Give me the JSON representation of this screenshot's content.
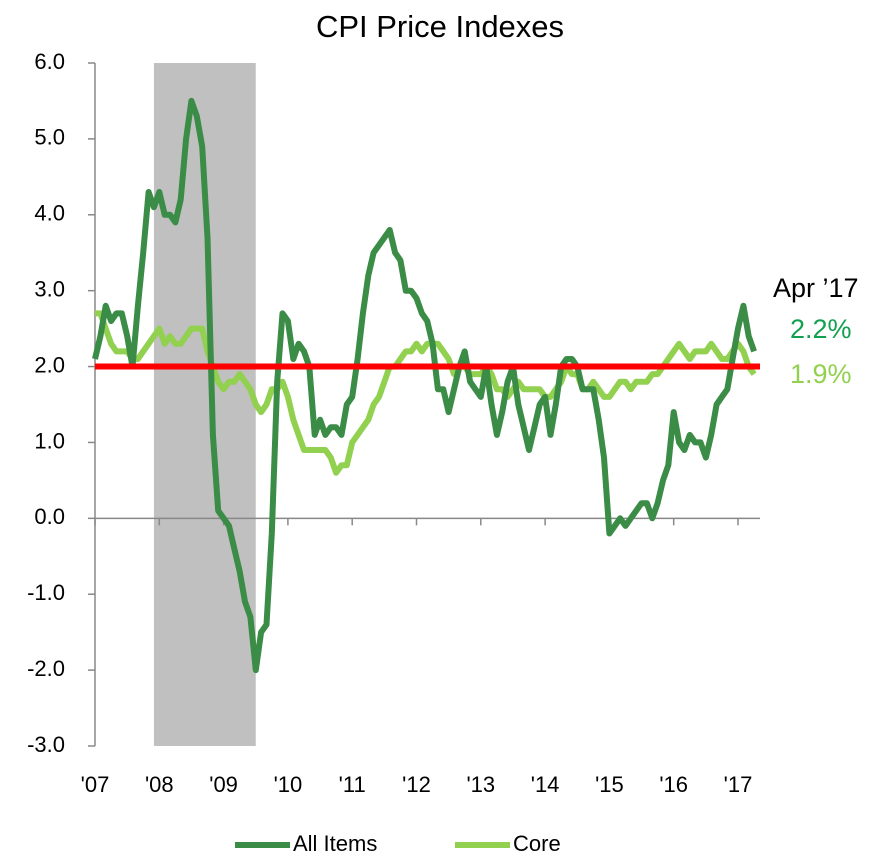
{
  "chart_data": {
    "type": "line",
    "title": "CPI Price Indexes",
    "categories": [
      "'07",
      null,
      null,
      null,
      null,
      null,
      null,
      null,
      null,
      null,
      null,
      null,
      "'08",
      null,
      null,
      null,
      null,
      null,
      null,
      null,
      null,
      null,
      null,
      null,
      "'09",
      null,
      null,
      null,
      null,
      null,
      null,
      null,
      null,
      null,
      null,
      null,
      "'10",
      null,
      null,
      null,
      null,
      null,
      null,
      null,
      null,
      null,
      null,
      null,
      "'11",
      null,
      null,
      null,
      null,
      null,
      null,
      null,
      null,
      null,
      null,
      null,
      "'12",
      null,
      null,
      null,
      null,
      null,
      null,
      null,
      null,
      null,
      null,
      null,
      "'13",
      null,
      null,
      null,
      null,
      null,
      null,
      null,
      null,
      null,
      null,
      null,
      "'14",
      null,
      null,
      null,
      null,
      null,
      null,
      null,
      null,
      null,
      null,
      null,
      "'15",
      null,
      null,
      null,
      null,
      null,
      null,
      null,
      null,
      null,
      null,
      null,
      "'16",
      null,
      null,
      null,
      null,
      null,
      null,
      null,
      null,
      null,
      null,
      null,
      "'17",
      null,
      null,
      null
    ],
    "series": [
      {
        "name": "All Items",
        "color": "#3a8c46",
        "values": [
          2.1,
          2.4,
          2.8,
          2.6,
          2.7,
          2.7,
          2.4,
          2.0,
          2.8,
          3.5,
          4.3,
          4.1,
          4.3,
          4.0,
          4.0,
          3.9,
          4.2,
          5.0,
          5.5,
          5.3,
          4.9,
          3.7,
          1.1,
          0.1,
          0.0,
          -0.1,
          -0.4,
          -0.7,
          -1.1,
          -1.3,
          -2.0,
          -1.5,
          -1.4,
          -0.2,
          1.8,
          2.7,
          2.6,
          2.1,
          2.3,
          2.2,
          2.0,
          1.1,
          1.3,
          1.1,
          1.2,
          1.2,
          1.1,
          1.5,
          1.6,
          2.1,
          2.7,
          3.2,
          3.5,
          3.6,
          3.7,
          3.8,
          3.5,
          3.4,
          3.0,
          3.0,
          2.9,
          2.7,
          2.6,
          2.3,
          1.7,
          1.7,
          1.4,
          1.7,
          2.0,
          2.2,
          1.8,
          1.7,
          1.6,
          2.0,
          1.5,
          1.1,
          1.4,
          1.8,
          2.0,
          1.5,
          1.2,
          0.9,
          1.2,
          1.5,
          1.6,
          1.1,
          1.5,
          2.0,
          2.1,
          2.1,
          2.0,
          1.7,
          1.7,
          1.7,
          1.3,
          0.8,
          -0.2,
          -0.1,
          0.0,
          -0.1,
          0.0,
          0.1,
          0.2,
          0.2,
          0.0,
          0.2,
          0.5,
          0.7,
          1.4,
          1.0,
          0.9,
          1.1,
          1.0,
          1.0,
          0.8,
          1.1,
          1.5,
          1.6,
          1.7,
          2.1,
          2.5,
          2.8,
          2.4,
          2.2
        ]
      },
      {
        "name": "Core",
        "color": "#92d050",
        "values": [
          2.7,
          2.7,
          2.5,
          2.3,
          2.2,
          2.2,
          2.2,
          2.1,
          2.1,
          2.2,
          2.3,
          2.4,
          2.5,
          2.3,
          2.4,
          2.3,
          2.3,
          2.4,
          2.5,
          2.5,
          2.5,
          2.2,
          2.0,
          1.8,
          1.7,
          1.8,
          1.8,
          1.9,
          1.8,
          1.7,
          1.5,
          1.4,
          1.5,
          1.7,
          1.7,
          1.8,
          1.6,
          1.3,
          1.1,
          0.9,
          0.9,
          0.9,
          0.9,
          0.9,
          0.8,
          0.6,
          0.7,
          0.7,
          1.0,
          1.1,
          1.2,
          1.3,
          1.5,
          1.6,
          1.8,
          2.0,
          2.0,
          2.1,
          2.2,
          2.2,
          2.3,
          2.2,
          2.3,
          2.3,
          2.3,
          2.2,
          2.1,
          1.9,
          2.0,
          2.0,
          1.9,
          1.9,
          1.9,
          2.0,
          1.9,
          1.7,
          1.7,
          1.6,
          1.7,
          1.8,
          1.7,
          1.7,
          1.7,
          1.7,
          1.6,
          1.6,
          1.7,
          1.8,
          2.0,
          1.9,
          1.9,
          1.7,
          1.7,
          1.8,
          1.7,
          1.6,
          1.6,
          1.7,
          1.8,
          1.8,
          1.7,
          1.8,
          1.8,
          1.8,
          1.9,
          1.9,
          2.0,
          2.1,
          2.2,
          2.3,
          2.2,
          2.1,
          2.2,
          2.2,
          2.2,
          2.3,
          2.2,
          2.1,
          2.1,
          2.2,
          2.3,
          2.2,
          2.0,
          1.9
        ]
      }
    ],
    "ylim": [
      -3,
      6
    ],
    "yticks": [
      {
        "value": -3,
        "label": "-3.0"
      },
      {
        "value": -2,
        "label": "-2.0"
      },
      {
        "value": -1,
        "label": "-1.0"
      },
      {
        "value": 0,
        "label": "0.0"
      },
      {
        "value": 1,
        "label": "1.0"
      },
      {
        "value": 2,
        "label": "2.0"
      },
      {
        "value": 3,
        "label": "3.0"
      },
      {
        "value": 4,
        "label": "4.0"
      },
      {
        "value": 5,
        "label": "5.0"
      },
      {
        "value": 6,
        "label": "6.0"
      }
    ],
    "reference_line": {
      "value": 2,
      "color": "#ff0000"
    },
    "shaded_range": {
      "from": 11,
      "to": 30,
      "color": "#c0c0c0"
    },
    "annotations": {
      "heading": "Apr ’17",
      "labels": [
        {
          "text": "2.2%",
          "color": "#11a050"
        },
        {
          "text": "1.9%",
          "color": "#92d050"
        }
      ]
    },
    "legend": "bottom"
  }
}
